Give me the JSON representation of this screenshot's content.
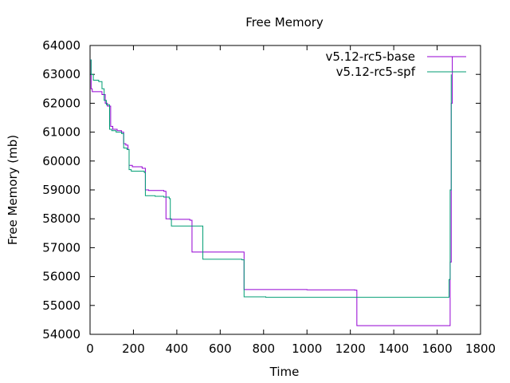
{
  "chart_data": {
    "type": "line",
    "title": "Free Memory",
    "xlabel": "Time",
    "ylabel": "Free Memory (mb)",
    "xlim": [
      0,
      1800
    ],
    "ylim": [
      54000,
      64000
    ],
    "xticks": [
      0,
      200,
      400,
      600,
      800,
      1000,
      1200,
      1400,
      1600,
      1800
    ],
    "yticks": [
      54000,
      55000,
      56000,
      57000,
      58000,
      59000,
      60000,
      61000,
      62000,
      63000,
      64000
    ],
    "grid": false,
    "legend_position": "top-right",
    "series": [
      {
        "name": "v5.12-rc5-base",
        "color": "#9400d3",
        "x": [
          0,
          5,
          10,
          45,
          55,
          70,
          80,
          95,
          105,
          125,
          145,
          155,
          165,
          175,
          180,
          195,
          240,
          255,
          270,
          340,
          350,
          370,
          460,
          470,
          520,
          600,
          700,
          710,
          960,
          1000,
          1220,
          1230,
          1600,
          1655,
          1660,
          1665,
          1670
        ],
        "y": [
          63500,
          62500,
          62400,
          62400,
          62300,
          62000,
          61900,
          61200,
          61100,
          61050,
          61000,
          60600,
          60550,
          60400,
          59850,
          59800,
          59750,
          59000,
          58980,
          58950,
          58000,
          57980,
          57950,
          56850,
          56850,
          56850,
          56850,
          55550,
          55550,
          55540,
          55530,
          54300,
          54300,
          54300,
          56500,
          62000,
          63600
        ]
      },
      {
        "name": "v5.12-rc5-spf",
        "color": "#009e73",
        "x": [
          0,
          5,
          15,
          40,
          55,
          65,
          75,
          90,
          100,
          120,
          145,
          155,
          170,
          180,
          190,
          240,
          250,
          255,
          300,
          340,
          365,
          370,
          375,
          510,
          520,
          600,
          700,
          710,
          810,
          1000,
          1200,
          1600,
          1650,
          1655,
          1660,
          1665
        ],
        "y": [
          63500,
          63000,
          62800,
          62750,
          62500,
          62100,
          61950,
          61100,
          61050,
          61000,
          60950,
          60450,
          60400,
          59700,
          59650,
          59650,
          59600,
          58800,
          58780,
          58750,
          58700,
          58000,
          57750,
          57750,
          56600,
          56600,
          56580,
          55300,
          55280,
          55280,
          55280,
          55280,
          55280,
          55900,
          59000,
          63000
        ]
      }
    ]
  }
}
